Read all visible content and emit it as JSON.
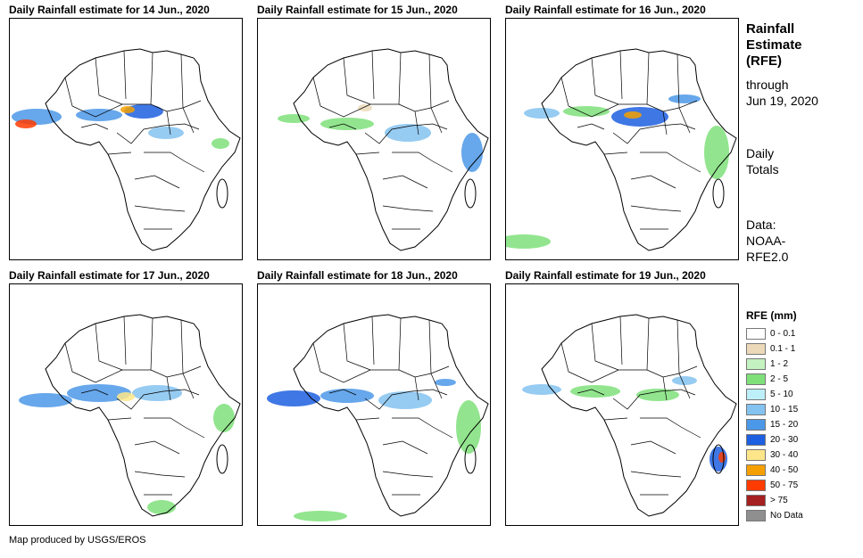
{
  "panels": [
    {
      "title": "Daily Rainfall estimate for 14 Jun., 2020",
      "pattern": 0
    },
    {
      "title": "Daily Rainfall estimate for 15 Jun., 2020",
      "pattern": 1
    },
    {
      "title": "Daily Rainfall estimate for 16 Jun., 2020",
      "pattern": 2
    },
    {
      "title": "Daily Rainfall estimate for 17 Jun., 2020",
      "pattern": 3
    },
    {
      "title": "Daily Rainfall estimate for 18 Jun., 2020",
      "pattern": 4
    },
    {
      "title": "Daily Rainfall estimate for 19 Jun., 2020",
      "pattern": 5
    }
  ],
  "side": {
    "title_line1": "Rainfall",
    "title_line2": "Estimate",
    "title_line3": "(RFE)",
    "through_line1": "through",
    "through_line2": "Jun 19, 2020",
    "totals_line1": "Daily",
    "totals_line2": "Totals",
    "data_line1": "Data:",
    "data_line2": "NOAA-",
    "data_line3": "RFE2.0"
  },
  "legend": {
    "title": "RFE (mm)",
    "items": [
      {
        "label": "0 - 0.1",
        "color": "#ffffff"
      },
      {
        "label": "0.1 - 1",
        "color": "#ecd9b9"
      },
      {
        "label": "1 - 2",
        "color": "#c4f2c0"
      },
      {
        "label": "2 - 5",
        "color": "#7fe07a"
      },
      {
        "label": "5 - 10",
        "color": "#bdeff8"
      },
      {
        "label": "10 - 15",
        "color": "#84c2f0"
      },
      {
        "label": "15 - 20",
        "color": "#4c98e8"
      },
      {
        "label": "20 - 30",
        "color": "#1d5fe0"
      },
      {
        "label": "30 - 40",
        "color": "#fde68a"
      },
      {
        "label": "40 - 50",
        "color": "#f5a000"
      },
      {
        "label": "50 - 75",
        "color": "#ff3b00"
      },
      {
        "label": "> 75",
        "color": "#a52020"
      },
      {
        "label": "No Data",
        "color": "#8f8f8f"
      }
    ]
  },
  "credit": "Map produced by USGS/EROS"
}
